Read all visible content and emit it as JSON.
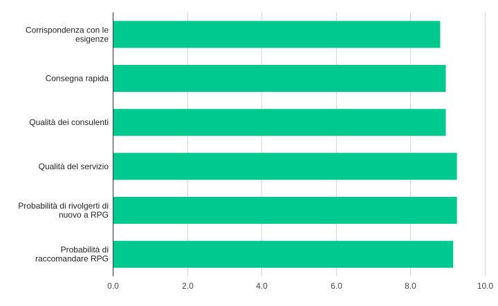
{
  "chart_data": {
    "type": "bar",
    "orientation": "horizontal",
    "categories": [
      [
        "Corrispondenza con le",
        "esigenze"
      ],
      [
        "Consegna rapida"
      ],
      [
        "Qualità dei consulenti"
      ],
      [
        "Qualità del servizio"
      ],
      [
        "Probabilità di rivolgerti di",
        "nuovo a RPG"
      ],
      [
        "Probabilità di",
        "raccomandare RPG"
      ]
    ],
    "values": [
      8.8,
      8.95,
      8.95,
      9.25,
      9.25,
      9.15
    ],
    "xlim": [
      0,
      10
    ],
    "xticks": [
      "0.0",
      "2.0",
      "4.0",
      "6.0",
      "8.0",
      "10.0"
    ],
    "title": "",
    "xlabel": "",
    "ylabel": "",
    "grid": true,
    "legend": "none",
    "colors": {
      "bar": "#00c98f",
      "grid": "#d6d6d6",
      "axis": "#333333"
    }
  }
}
